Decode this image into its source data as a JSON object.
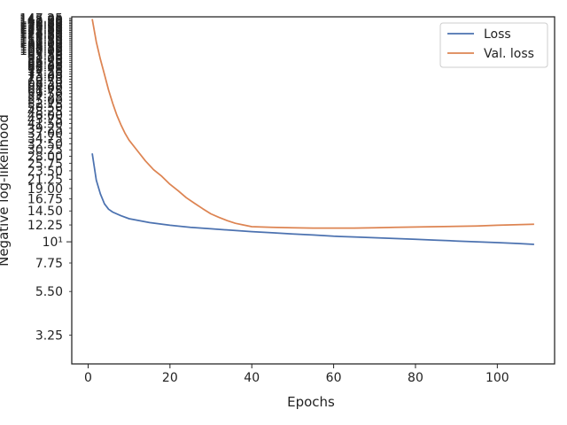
{
  "chart_data": {
    "type": "line",
    "xlabel": "Epochs",
    "ylabel": "Negative log-likelihood",
    "xlim": [
      -4,
      114
    ],
    "ylim": [
      2.3,
      150
    ],
    "yscale": "log",
    "x_ticks": [
      0,
      20,
      40,
      60,
      80,
      100
    ],
    "x_tick_labels": [
      "0",
      "20",
      "40",
      "60",
      "80",
      "100"
    ],
    "y_major_ticks": [
      {
        "value": 10,
        "label": "10¹"
      }
    ],
    "y_minor_ticks": [
      {
        "value": 3.25,
        "label": "3.25"
      },
      {
        "value": 5.5,
        "label": "5.50"
      },
      {
        "value": 7.75,
        "label": "7.75"
      },
      {
        "value": 12.25,
        "label": "12.25"
      },
      {
        "value": 14.5,
        "label": "14.50"
      },
      {
        "value": 16.75,
        "label": "16.75"
      },
      {
        "value": 19.0,
        "label": "19.00"
      },
      {
        "value": 21.25,
        "label": "21.25"
      },
      {
        "value": 23.5,
        "label": "23.50"
      },
      {
        "value": 25.75,
        "label": "25.75"
      },
      {
        "value": 28.0,
        "label": "28.00"
      },
      {
        "value": 30.25,
        "label": "30.25"
      },
      {
        "value": 32.5,
        "label": "32.50"
      },
      {
        "value": 34.75,
        "label": "34.75"
      },
      {
        "value": 37.0,
        "label": "37.00"
      },
      {
        "value": 39.25,
        "label": "39.25"
      },
      {
        "value": 41.5,
        "label": "41.50"
      },
      {
        "value": 43.75,
        "label": "43.75"
      },
      {
        "value": 46.0,
        "label": "46.00"
      },
      {
        "value": 48.25,
        "label": "48.25"
      },
      {
        "value": 50.5,
        "label": "50.50"
      },
      {
        "value": 52.75,
        "label": "52.75"
      },
      {
        "value": 55.0,
        "label": "55.00"
      },
      {
        "value": 57.25,
        "label": "57.25"
      },
      {
        "value": 59.5,
        "label": "59.50"
      },
      {
        "value": 61.75,
        "label": "61.75"
      },
      {
        "value": 64.0,
        "label": "64.00"
      },
      {
        "value": 66.25,
        "label": "66.25"
      },
      {
        "value": 68.5,
        "label": "68.50"
      },
      {
        "value": 70.75,
        "label": "70.75"
      },
      {
        "value": 73.0,
        "label": "73.00"
      },
      {
        "value": 75.25,
        "label": "75.25"
      },
      {
        "value": 77.5,
        "label": "77.50"
      },
      {
        "value": 79.75,
        "label": "79.75"
      },
      {
        "value": 82.0,
        "label": "82.00"
      },
      {
        "value": 84.25,
        "label": "84.25"
      },
      {
        "value": 86.5,
        "label": "86.50"
      },
      {
        "value": 88.75,
        "label": "88.75"
      },
      {
        "value": 91.0,
        "label": "91.00"
      },
      {
        "value": 93.25,
        "label": "93.25"
      },
      {
        "value": 95.5,
        "label": "95.50"
      },
      {
        "value": 97.75,
        "label": "97.75"
      },
      {
        "value": 100.0,
        "label": "100.00"
      },
      {
        "value": 102.25,
        "label": "102.25"
      },
      {
        "value": 104.5,
        "label": "104.50"
      },
      {
        "value": 106.75,
        "label": "106.75"
      },
      {
        "value": 109.0,
        "label": "109.00"
      },
      {
        "value": 111.25,
        "label": "111.25"
      },
      {
        "value": 113.5,
        "label": "113.50"
      },
      {
        "value": 115.75,
        "label": "115.75"
      },
      {
        "value": 118.0,
        "label": "118.00"
      },
      {
        "value": 120.25,
        "label": "120.25"
      },
      {
        "value": 122.5,
        "label": "122.50"
      },
      {
        "value": 124.75,
        "label": "124.75"
      },
      {
        "value": 127.0,
        "label": "127.00"
      },
      {
        "value": 129.25,
        "label": "129.25"
      },
      {
        "value": 131.5,
        "label": "131.50"
      },
      {
        "value": 133.75,
        "label": "133.75"
      },
      {
        "value": 136.0,
        "label": "136.00"
      },
      {
        "value": 138.25,
        "label": "138.25"
      },
      {
        "value": 140.5,
        "label": "140.50"
      },
      {
        "value": 142.75,
        "label": "142.75"
      },
      {
        "value": 145.0,
        "label": "145.00"
      },
      {
        "value": 147.25,
        "label": "147.25"
      }
    ],
    "grid": false,
    "legend": {
      "position": "top-right"
    },
    "series": [
      {
        "name": "Loss",
        "color": "#4c72b0",
        "x": [
          1,
          2,
          3,
          4,
          5,
          6,
          8,
          10,
          15,
          20,
          25,
          30,
          35,
          40,
          45,
          50,
          55,
          60,
          65,
          70,
          75,
          80,
          85,
          90,
          95,
          100,
          105,
          109
        ],
        "y": [
          29.0,
          21.0,
          17.8,
          15.8,
          14.8,
          14.3,
          13.7,
          13.2,
          12.6,
          12.2,
          11.9,
          11.7,
          11.5,
          11.3,
          11.15,
          11.0,
          10.85,
          10.7,
          10.6,
          10.5,
          10.4,
          10.3,
          10.2,
          10.1,
          10.0,
          9.9,
          9.8,
          9.7
        ]
      },
      {
        "name": "Val. loss",
        "color": "#dd8452",
        "x": [
          1,
          2,
          3,
          4,
          5,
          6,
          7,
          8,
          9,
          10,
          12,
          14,
          16,
          18,
          20,
          22,
          24,
          26,
          28,
          30,
          32,
          34,
          36,
          38,
          40,
          45,
          50,
          55,
          60,
          65,
          70,
          75,
          80,
          85,
          90,
          95,
          100,
          105,
          109
        ],
        "y": [
          146.0,
          111.0,
          90.0,
          75.0,
          62.0,
          53.0,
          46.0,
          41.0,
          37.0,
          34.0,
          30.0,
          26.5,
          23.8,
          22.0,
          20.0,
          18.5,
          17.0,
          15.9,
          14.9,
          14.0,
          13.4,
          12.9,
          12.5,
          12.25,
          12.0,
          11.9,
          11.85,
          11.8,
          11.8,
          11.8,
          11.85,
          11.9,
          11.95,
          12.0,
          12.05,
          12.1,
          12.2,
          12.3,
          12.35
        ]
      }
    ]
  }
}
